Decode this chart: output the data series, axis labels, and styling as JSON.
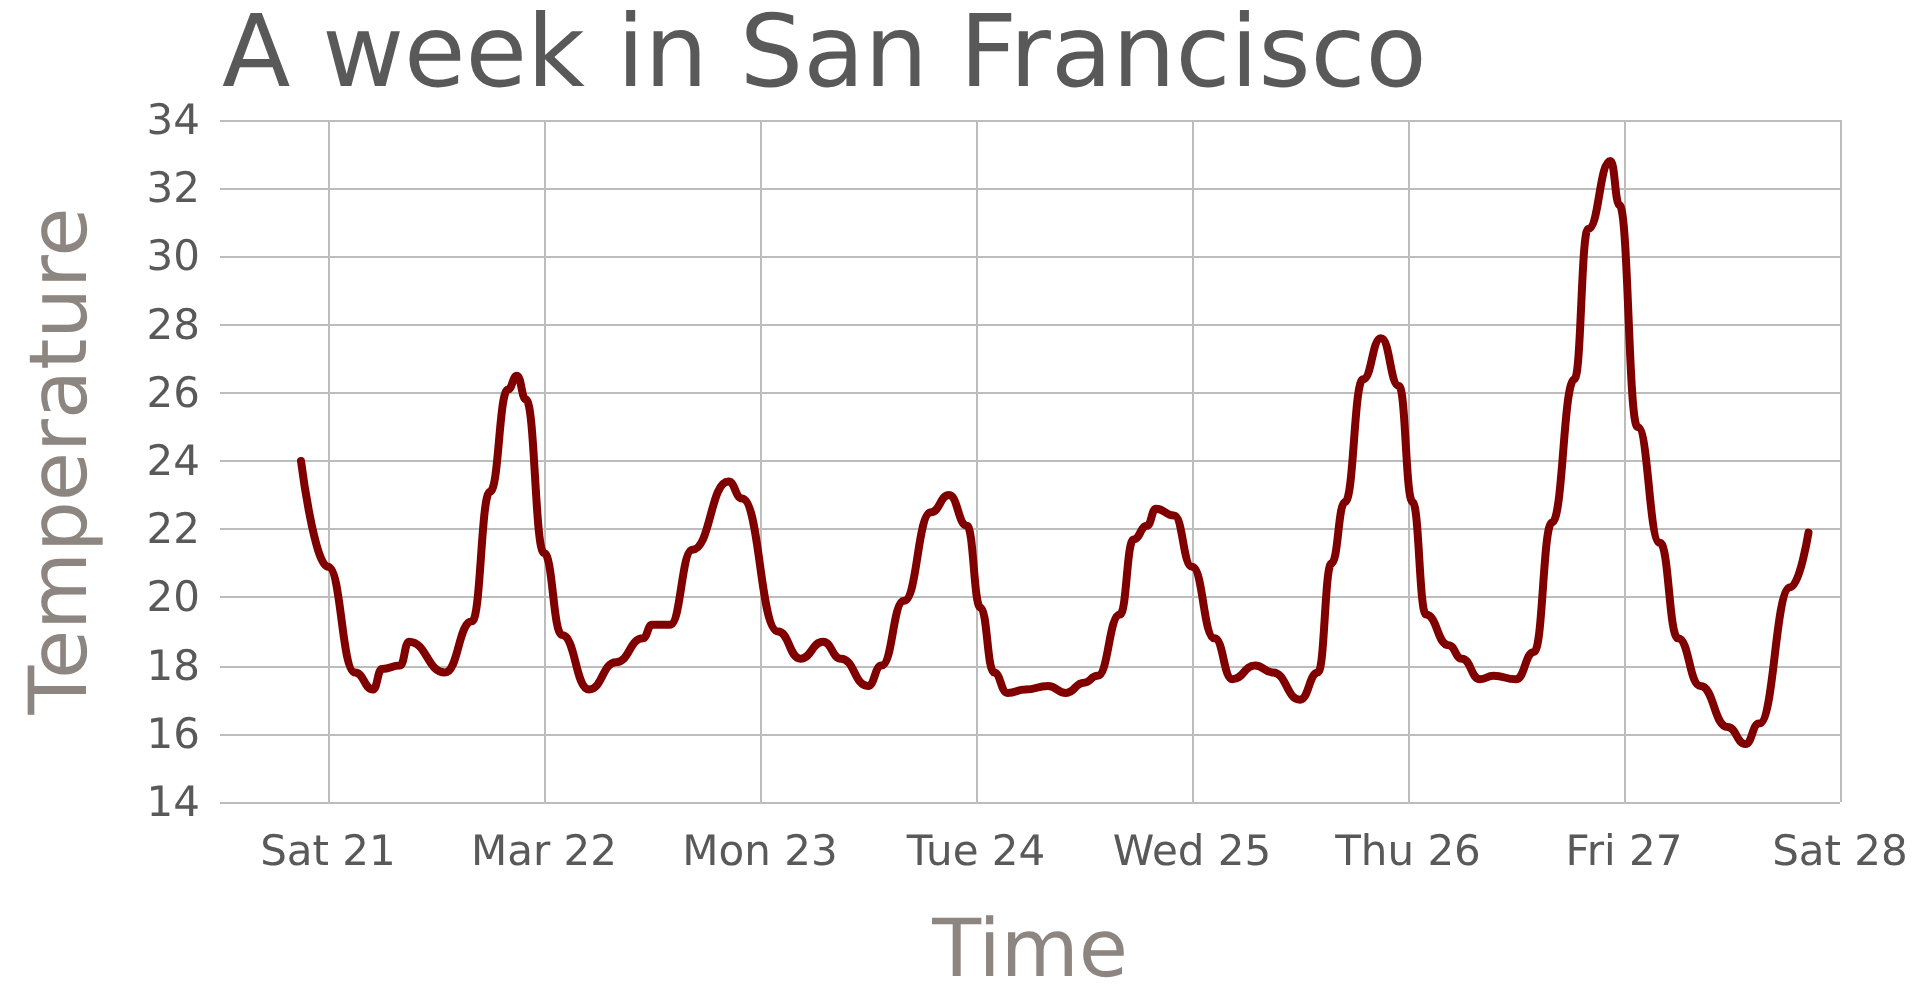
{
  "chart_data": {
    "type": "line",
    "title": "A week in San Francisco",
    "xlabel": "Time",
    "ylabel": "Temperature",
    "x": [
      "--03-20T21:00",
      "--03-21T00:00",
      "--03-21T03:00",
      "--03-21T05:00",
      "--03-21T06:00",
      "--03-21T08:00",
      "--03-21T09:00",
      "--03-21T13:00",
      "--03-21T16:00",
      "--03-21T18:00",
      "--03-21T20:00",
      "--03-21T21:00",
      "--03-21T22:00",
      "--03-22T00:00",
      "--03-22T02:00",
      "--03-22T05:00",
      "--03-22T08:00",
      "--03-22T11:00",
      "--03-22T12:00",
      "--03-22T14:00",
      "--03-22T16:30",
      "--03-22T20:30",
      "--03-22T22:00",
      "--03-23T02:00",
      "--03-23T04:30",
      "--03-23T07:00",
      "--03-23T09:00",
      "--03-23T12:00",
      "--03-23T13:30",
      "--03-23T16:00",
      "--03-23T19:00",
      "--03-23T21:00",
      "--03-23T23:00",
      "--03-24T00:30",
      "--03-24T02:00",
      "--03-24T03:30",
      "--03-24T05:30",
      "--03-24T08:00",
      "--03-24T10:00",
      "--03-24T12:00",
      "--03-24T13:30",
      "--03-24T16:00",
      "--03-24T17:30",
      "--03-24T19:00",
      "--03-24T20:00",
      "--03-24T22:00",
      "--03-25T00:00",
      "--03-25T02:30",
      "--03-25T04:30",
      "--03-25T07:00",
      "--03-25T09:00",
      "--03-25T12:00",
      "--03-25T14:00",
      "--03-25T15:30",
      "--03-25T17:00",
      "--03-25T19:00",
      "--03-25T21:00",
      "--03-25T23:00",
      "--03-26T00:30",
      "--03-26T02:00",
      "--03-26T04:30",
      "--03-26T06:00",
      "--03-26T08:00",
      "--03-26T09:30",
      "--03-26T12:00",
      "--03-26T14:00",
      "--03-26T16:00",
      "--03-26T18:30",
      "--03-26T20:00",
      "--03-26T22:30",
      "--03-26T23:30",
      "--03-27T01:30",
      "--03-27T04:00",
      "--03-27T06:00",
      "--03-27T08:30",
      "--03-27T11:30",
      "--03-27T13:30",
      "--03-27T15:00",
      "--03-27T18:30",
      "--03-27T20:30"
    ],
    "series": [
      {
        "color": "#800000",
        "values": [
          24.0,
          20.9,
          17.8,
          17.3,
          17.9,
          18.0,
          18.7,
          17.8,
          19.3,
          23.1,
          26.1,
          26.5,
          25.8,
          21.3,
          18.9,
          17.3,
          18.1,
          18.8,
          19.2,
          19.2,
          21.4,
          23.4,
          22.9,
          19.0,
          18.2,
          18.7,
          18.2,
          17.4,
          18.0,
          19.9,
          22.5,
          23.0,
          22.1,
          19.7,
          17.8,
          17.2,
          17.3,
          17.4,
          17.2,
          17.5,
          17.7,
          19.5,
          21.7,
          22.1,
          22.6,
          22.4,
          20.9,
          18.8,
          17.6,
          18.0,
          17.8,
          17.0,
          17.8,
          21.0,
          22.8,
          26.4,
          27.6,
          26.2,
          22.8,
          19.5,
          18.6,
          18.2,
          17.6,
          17.7,
          17.6,
          18.4,
          22.2,
          26.4,
          30.8,
          32.8,
          31.5,
          25.0,
          21.6,
          18.8,
          17.4,
          16.2,
          15.7,
          16.3,
          20.3,
          21.9
        ]
      }
    ],
    "xlim": [
      "--03-20T12:00",
      "--03-28T00:00"
    ],
    "xticks": [
      {
        "value": "--03-21",
        "label": "Sat 21"
      },
      {
        "value": "--03-22",
        "label": "Mar 22"
      },
      {
        "value": "--03-23",
        "label": "Mon 23"
      },
      {
        "value": "--03-24",
        "label": "Tue 24"
      },
      {
        "value": "--03-25",
        "label": "Wed 25"
      },
      {
        "value": "--03-26",
        "label": "Thu 26"
      },
      {
        "value": "--03-27",
        "label": "Fri 27"
      },
      {
        "value": "--03-28",
        "label": "Sat 28"
      }
    ],
    "ylim": [
      14,
      34
    ],
    "yticks": [
      14,
      16,
      18,
      20,
      22,
      24,
      26,
      28,
      30,
      32,
      34
    ],
    "grid": true,
    "marker": "none",
    "line_style": "solid"
  }
}
